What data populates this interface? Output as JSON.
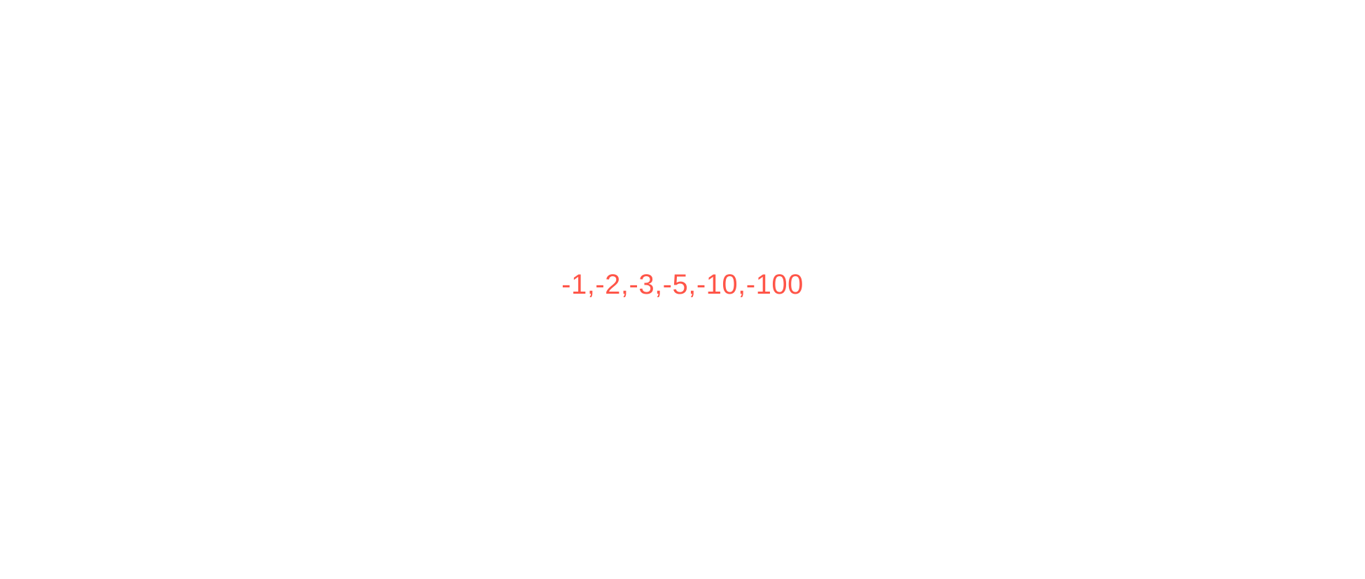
{
  "sequence_text": "-1,-2,-3,-5,-10,-100",
  "colors": {
    "text": "#ff5548",
    "background": "#ffffff"
  }
}
